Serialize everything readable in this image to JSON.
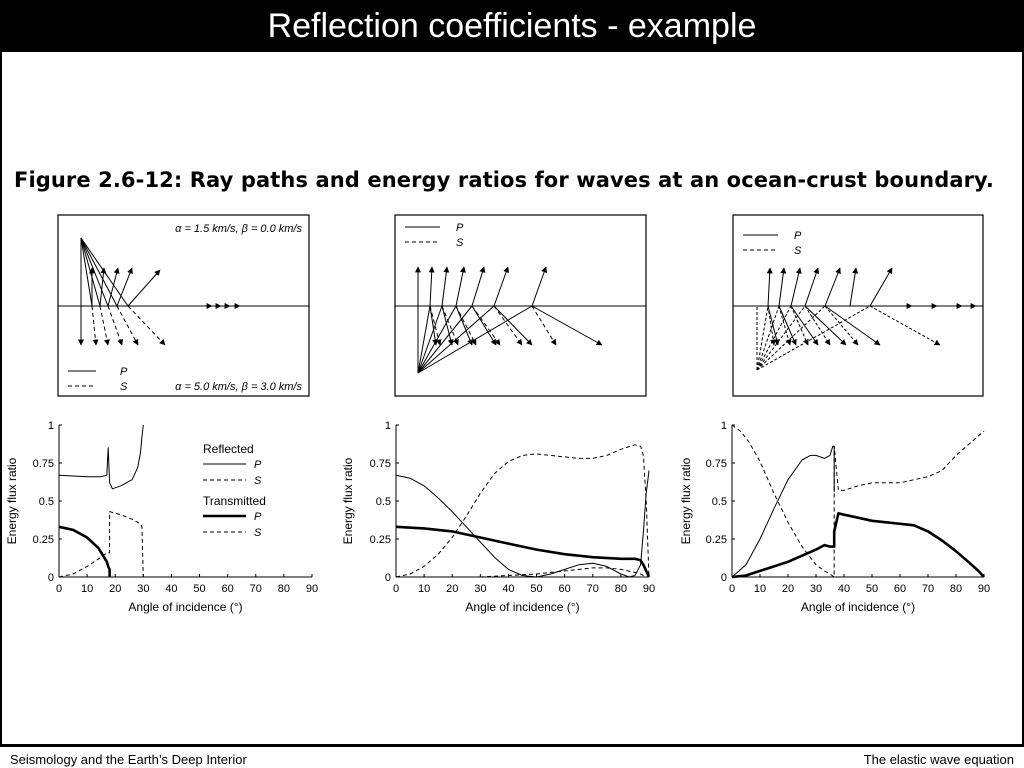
{
  "slide": {
    "title": "Reflection coefficients - example",
    "figure_caption": "Figure 2.6-12: Ray paths and energy ratios for waves at an ocean-crust boundary.",
    "footer_left": "Seismology and the Earth’s Deep Interior",
    "footer_right": "The elastic wave equation"
  },
  "ray_panels": {
    "top_params": "α = 1.5 km/s, β = 0.0 km/s",
    "bottom_params": "α = 5.0 km/s, β = 3.0 km/s",
    "legend_p": "P",
    "legend_s": "S"
  },
  "legend": {
    "reflected": "Reflected",
    "transmitted": "Transmitted",
    "p": "P",
    "s": "S"
  },
  "chart_data": [
    {
      "type": "line",
      "xlabel": "Angle of incidence (°)",
      "ylabel": "Energy flux ratio",
      "xlim": [
        0,
        90
      ],
      "ylim": [
        0,
        1
      ],
      "xticks": [
        0,
        10,
        20,
        30,
        40,
        50,
        60,
        70,
        80,
        90
      ],
      "yticks": [
        0,
        0.25,
        0.5,
        0.75,
        1
      ],
      "series": [
        {
          "name": "Reflected P",
          "style": "thin-solid",
          "x": [
            0,
            10,
            15,
            17,
            17.5,
            18,
            19,
            22,
            26,
            28,
            29,
            29.5,
            30
          ],
          "y": [
            0.67,
            0.66,
            0.66,
            0.67,
            0.85,
            0.62,
            0.58,
            0.6,
            0.64,
            0.72,
            0.82,
            0.92,
            1.0
          ]
        },
        {
          "name": "Reflected S",
          "style": "thin-dashed",
          "x": [
            0,
            5,
            10,
            15,
            17,
            18,
            18,
            22,
            26,
            29,
            29.5,
            30
          ],
          "y": [
            0.0,
            0.02,
            0.07,
            0.13,
            0.16,
            0.16,
            0.43,
            0.41,
            0.38,
            0.35,
            0.33,
            0.0
          ]
        },
        {
          "name": "Transmitted P",
          "style": "thick-solid",
          "x": [
            0,
            5,
            10,
            14,
            16,
            17,
            17.5,
            18,
            18
          ],
          "y": [
            0.33,
            0.31,
            0.26,
            0.19,
            0.13,
            0.1,
            0.07,
            0.05,
            0.0
          ]
        },
        {
          "name": "Transmitted S",
          "style": "thick-dashed",
          "x": [],
          "y": []
        }
      ]
    },
    {
      "type": "line",
      "xlabel": "Angle of incidence (°)",
      "ylabel": "Energy flux ratio",
      "xlim": [
        0,
        90
      ],
      "ylim": [
        0,
        1
      ],
      "xticks": [
        0,
        10,
        20,
        30,
        40,
        50,
        60,
        70,
        80,
        90
      ],
      "yticks": [
        0,
        0.25,
        0.5,
        0.75,
        1
      ],
      "series": [
        {
          "name": "Reflected P",
          "style": "thin-solid",
          "x": [
            0,
            5,
            10,
            15,
            20,
            25,
            30,
            35,
            40,
            45,
            50,
            55,
            60,
            65,
            70,
            75,
            80,
            83,
            85,
            87,
            88,
            89,
            90
          ],
          "y": [
            0.67,
            0.65,
            0.6,
            0.52,
            0.43,
            0.33,
            0.23,
            0.13,
            0.05,
            0.01,
            0.0,
            0.02,
            0.05,
            0.08,
            0.09,
            0.07,
            0.02,
            0.0,
            0.01,
            0.08,
            0.3,
            0.55,
            0.7
          ]
        },
        {
          "name": "Reflected S",
          "style": "thin-dashed",
          "x": [
            0,
            5,
            10,
            15,
            20,
            25,
            30,
            35,
            40,
            45,
            50,
            55,
            60,
            65,
            70,
            75,
            80,
            85,
            87,
            88,
            89,
            90
          ],
          "y": [
            0.0,
            0.02,
            0.07,
            0.15,
            0.26,
            0.4,
            0.55,
            0.68,
            0.76,
            0.8,
            0.81,
            0.8,
            0.79,
            0.78,
            0.78,
            0.8,
            0.84,
            0.87,
            0.86,
            0.8,
            0.5,
            0.0
          ]
        },
        {
          "name": "Transmitted P",
          "style": "thick-solid",
          "x": [
            0,
            10,
            20,
            30,
            40,
            50,
            60,
            70,
            80,
            85,
            87,
            88,
            89,
            90
          ],
          "y": [
            0.33,
            0.32,
            0.3,
            0.26,
            0.22,
            0.18,
            0.15,
            0.13,
            0.12,
            0.12,
            0.11,
            0.08,
            0.04,
            0.0
          ]
        },
        {
          "name": "Transmitted S",
          "style": "thick-dashed",
          "x": [
            0,
            10,
            20,
            30,
            40,
            50,
            60,
            70,
            75,
            80,
            85,
            87,
            88,
            89,
            90
          ],
          "y": [
            0.0,
            0.0,
            0.0,
            0.0,
            0.01,
            0.02,
            0.04,
            0.06,
            0.06,
            0.05,
            0.03,
            0.02,
            0.01,
            0.0,
            0.0
          ]
        }
      ]
    },
    {
      "type": "line",
      "xlabel": "Angle of incidence (°)",
      "ylabel": "Energy flux ratio",
      "xlim": [
        0,
        90
      ],
      "ylim": [
        0,
        1
      ],
      "xticks": [
        0,
        10,
        20,
        30,
        40,
        50,
        60,
        70,
        80,
        90
      ],
      "yticks": [
        0,
        0.25,
        0.5,
        0.75,
        1
      ],
      "series": [
        {
          "name": "Reflected P",
          "style": "thin-solid",
          "x": [
            0,
            5,
            10,
            15,
            20,
            25,
            28,
            30,
            33,
            35,
            36,
            36.5,
            36.5
          ],
          "y": [
            0.0,
            0.08,
            0.25,
            0.45,
            0.64,
            0.77,
            0.8,
            0.8,
            0.78,
            0.8,
            0.86,
            0.86,
            0.56
          ]
        },
        {
          "name": "Reflected S",
          "style": "thin-dashed",
          "x": [
            0,
            3,
            6,
            10,
            15,
            20,
            25,
            30,
            33,
            35,
            36.5,
            36.5,
            38,
            40,
            45,
            50,
            55,
            60,
            65,
            70,
            75,
            80,
            85,
            90
          ],
          "y": [
            1.0,
            0.96,
            0.89,
            0.76,
            0.55,
            0.36,
            0.2,
            0.08,
            0.04,
            0.02,
            0.0,
            0.86,
            0.57,
            0.57,
            0.6,
            0.62,
            0.62,
            0.62,
            0.64,
            0.66,
            0.7,
            0.8,
            0.88,
            0.96
          ]
        },
        {
          "name": "Transmitted P",
          "style": "thick-solid",
          "x": [
            0,
            5,
            10,
            15,
            20,
            25,
            30,
            33,
            35,
            36.5,
            36.5,
            38,
            40,
            45,
            50,
            55,
            60,
            65,
            70,
            75,
            80,
            85,
            88,
            90
          ],
          "y": [
            0.0,
            0.01,
            0.04,
            0.07,
            0.1,
            0.14,
            0.18,
            0.21,
            0.2,
            0.2,
            0.3,
            0.42,
            0.41,
            0.39,
            0.37,
            0.36,
            0.35,
            0.34,
            0.3,
            0.24,
            0.17,
            0.09,
            0.04,
            0.0
          ]
        },
        {
          "name": "Transmitted S",
          "style": "thick-dashed",
          "x": [],
          "y": []
        }
      ]
    }
  ]
}
